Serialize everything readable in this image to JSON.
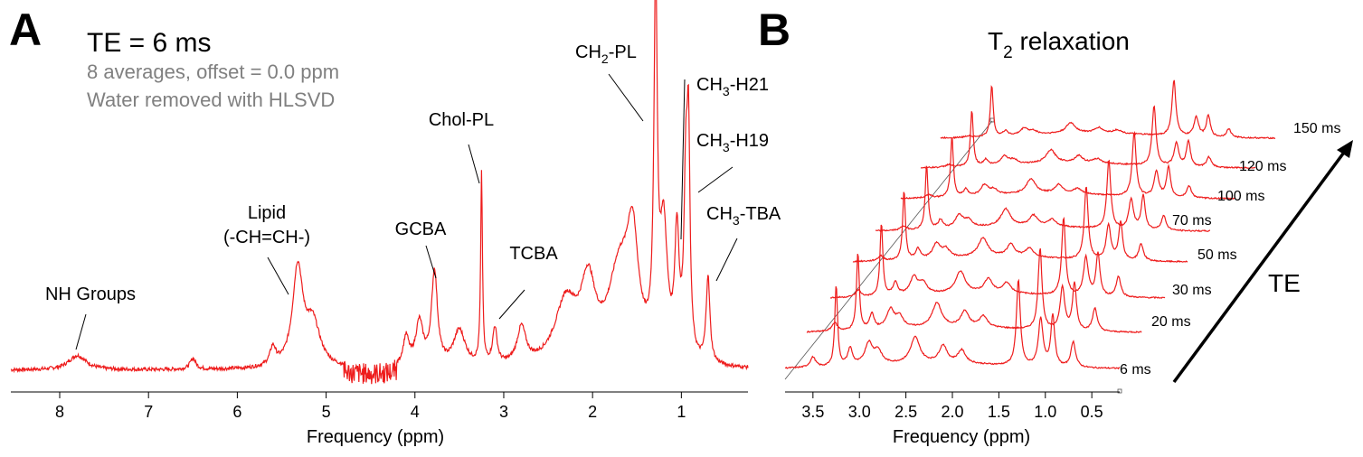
{
  "panel_a": {
    "letter": "A",
    "heading": "TE = 6 ms",
    "info_line1": "8 averages, offset = 0.0 ppm",
    "info_line2": "Water removed with HLSVD",
    "colors": {
      "trace": "#ee1c1c",
      "info_text": "#808080",
      "text": "#000000"
    }
  },
  "panel_b": {
    "letter": "B",
    "title_base": "T",
    "title_sub": "2",
    "title_rest": " relaxation",
    "depth_axis_label": "TE"
  },
  "chart_data": [
    {
      "type": "line",
      "title": "TE = 6 ms",
      "xlabel": "Frequency (ppm)",
      "ylabel": "",
      "xlim": [
        8.55,
        0.25
      ],
      "x_reversed": true,
      "y_axis_shown": false,
      "grid": false,
      "x_ticks": [
        8,
        7,
        6,
        5,
        4,
        3,
        2,
        1
      ],
      "x_tick_labels": [
        "8",
        "7",
        "6",
        "5",
        "4",
        "3",
        "2",
        "1"
      ],
      "baseline": 0.0,
      "peaks": [
        {
          "ppm": 7.8,
          "height": 0.04,
          "width": 0.12
        },
        {
          "ppm": 6.5,
          "height": 0.03,
          "width": 0.04
        },
        {
          "ppm": 5.6,
          "height": 0.05,
          "width": 0.04
        },
        {
          "ppm": 5.32,
          "height": 0.27,
          "width": 0.07
        },
        {
          "ppm": 5.15,
          "height": 0.12,
          "width": 0.1
        },
        {
          "ppm": 4.1,
          "height": 0.08,
          "width": 0.04
        },
        {
          "ppm": 3.95,
          "height": 0.12,
          "width": 0.05
        },
        {
          "ppm": 3.78,
          "height": 0.26,
          "width": 0.04
        },
        {
          "ppm": 3.5,
          "height": 0.1,
          "width": 0.08
        },
        {
          "ppm": 3.25,
          "height": 0.53,
          "width": 0.012
        },
        {
          "ppm": 3.1,
          "height": 0.1,
          "width": 0.03
        },
        {
          "ppm": 2.8,
          "height": 0.1,
          "width": 0.06
        },
        {
          "ppm": 2.3,
          "height": 0.17,
          "width": 0.15
        },
        {
          "ppm": 2.05,
          "height": 0.2,
          "width": 0.1
        },
        {
          "ppm": 1.7,
          "height": 0.24,
          "width": 0.15
        },
        {
          "ppm": 1.55,
          "height": 0.3,
          "width": 0.08
        },
        {
          "ppm": 1.29,
          "height": 1.0,
          "width": 0.022
        },
        {
          "ppm": 1.2,
          "height": 0.35,
          "width": 0.05
        },
        {
          "ppm": 1.05,
          "height": 0.33,
          "width": 0.03
        },
        {
          "ppm": 0.95,
          "height": 0.45,
          "width": 0.025
        },
        {
          "ppm": 0.92,
          "height": 0.55,
          "width": 0.02
        },
        {
          "ppm": 0.7,
          "height": 0.24,
          "width": 0.025
        }
      ],
      "annotations": [
        {
          "lines": [
            "NH Groups"
          ],
          "ppm": 7.8
        },
        {
          "lines": [
            "Lipid",
            "(-CH=CH-)"
          ],
          "ppm": 5.35
        },
        {
          "lines": [
            "GCBA"
          ],
          "ppm": 3.78
        },
        {
          "lines": [
            "Chol-PL"
          ],
          "ppm": 3.25
        },
        {
          "lines": [
            "TCBA"
          ],
          "ppm": 3.1
        },
        {
          "label": "CH",
          "sub": "2",
          "rest": "-PL",
          "ppm": 1.29
        },
        {
          "label": "CH",
          "sub": "3",
          "rest": "-H21",
          "ppm": 1.05
        },
        {
          "label": "CH",
          "sub": "3",
          "rest": "-H19",
          "ppm": 0.92
        },
        {
          "label": "CH",
          "sub": "3",
          "rest": "-TBA",
          "ppm": 0.7
        }
      ]
    },
    {
      "type": "line",
      "subtype": "stacked-waterfall",
      "title": "T2 relaxation",
      "xlabel": "Frequency (ppm)",
      "ylabel": "",
      "xlim": [
        3.8,
        0.2
      ],
      "x_reversed": true,
      "y_axis_shown": false,
      "x_ticks": [
        3.5,
        3.0,
        2.5,
        2.0,
        1.5,
        1.0,
        0.5
      ],
      "x_tick_labels": [
        "3.5",
        "3.0",
        "2.5",
        "2.0",
        "1.5",
        "1.0",
        "0.5"
      ],
      "depth_label": "TE",
      "peak_ppm": [
        3.5,
        3.25,
        3.1,
        2.9,
        2.8,
        2.4,
        2.1,
        1.9,
        1.29,
        1.05,
        0.92,
        0.7
      ],
      "series": [
        {
          "name": "6 ms",
          "te_ms": 6,
          "peak_heights": [
            0.12,
            0.95,
            0.2,
            0.25,
            0.15,
            0.3,
            0.2,
            0.15,
            1.0,
            0.55,
            0.6,
            0.3
          ]
        },
        {
          "name": "20 ms",
          "te_ms": 20,
          "peak_heights": [
            0.1,
            0.9,
            0.18,
            0.22,
            0.13,
            0.28,
            0.18,
            0.13,
            0.95,
            0.5,
            0.55,
            0.27
          ]
        },
        {
          "name": "30 ms",
          "te_ms": 30,
          "peak_heights": [
            0.08,
            0.85,
            0.15,
            0.2,
            0.12,
            0.25,
            0.16,
            0.12,
            0.9,
            0.45,
            0.5,
            0.24
          ]
        },
        {
          "name": "50 ms",
          "te_ms": 50,
          "peak_heights": [
            0.06,
            0.8,
            0.12,
            0.17,
            0.1,
            0.22,
            0.14,
            0.1,
            0.85,
            0.4,
            0.45,
            0.2
          ]
        },
        {
          "name": "70 ms",
          "te_ms": 70,
          "peak_heights": [
            0.05,
            0.75,
            0.1,
            0.15,
            0.08,
            0.2,
            0.12,
            0.08,
            0.8,
            0.35,
            0.4,
            0.17
          ]
        },
        {
          "name": "100 ms",
          "te_ms": 100,
          "peak_heights": [
            0.04,
            0.7,
            0.08,
            0.12,
            0.06,
            0.17,
            0.1,
            0.06,
            0.75,
            0.3,
            0.35,
            0.14
          ]
        },
        {
          "name": "120 ms",
          "te_ms": 120,
          "peak_heights": [
            0.03,
            0.65,
            0.07,
            0.1,
            0.05,
            0.15,
            0.08,
            0.05,
            0.7,
            0.27,
            0.3,
            0.12
          ]
        },
        {
          "name": "150 ms",
          "te_ms": 150,
          "peak_heights": [
            0.02,
            0.6,
            0.06,
            0.08,
            0.04,
            0.12,
            0.06,
            0.04,
            0.65,
            0.23,
            0.25,
            0.1
          ]
        }
      ]
    }
  ]
}
